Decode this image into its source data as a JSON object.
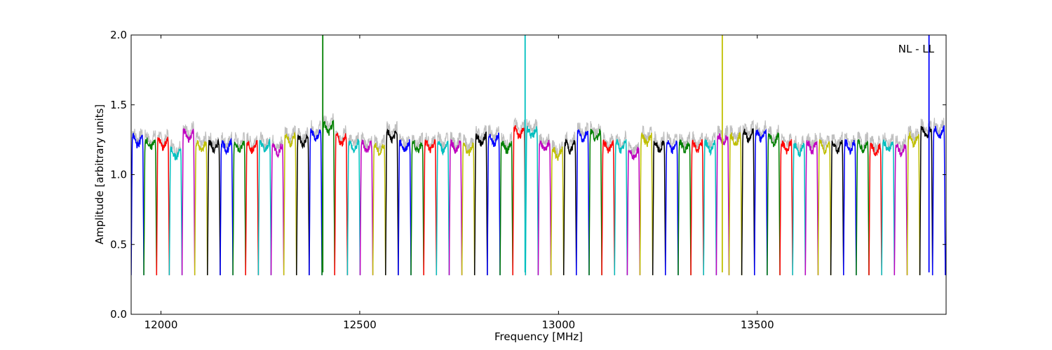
{
  "chart_data": {
    "type": "line",
    "xlabel": "Frequency [MHz]",
    "ylabel": "Amplitude [arbitrary units]",
    "annotation": "NL - LL",
    "xlim": [
      11925,
      13975
    ],
    "ylim": [
      0.0,
      2.0
    ],
    "xticks": [
      {
        "value": 12000,
        "label": "12000"
      },
      {
        "value": 12500,
        "label": "12500"
      },
      {
        "value": 13000,
        "label": "13000"
      },
      {
        "value": 13500,
        "label": "13500"
      }
    ],
    "yticks": [
      {
        "value": 0.0,
        "label": "0.0"
      },
      {
        "value": 0.5,
        "label": "0.5"
      },
      {
        "value": 1.0,
        "label": "1.0"
      },
      {
        "value": 1.5,
        "label": "1.5"
      },
      {
        "value": 2.0,
        "label": "2.0"
      }
    ],
    "grid": false,
    "band_width_mhz": 32,
    "color_cycle": [
      "#0000ff",
      "#008000",
      "#ff0000",
      "#00bfbf",
      "#bf00bf",
      "#bfbf00",
      "#000000"
    ],
    "background_color": "#bfbfbf",
    "band_start_mhz": [
      11925,
      11957,
      11989,
      12021,
      12053,
      12085,
      12117,
      12149,
      12181,
      12213,
      12245,
      12277,
      12309,
      12341,
      12373,
      12405,
      12437,
      12469,
      12501,
      12533,
      12565,
      12597,
      12629,
      12661,
      12693,
      12725,
      12757,
      12789,
      12821,
      12853,
      12885,
      12917,
      12949,
      12981,
      13013,
      13045,
      13077,
      13109,
      13141,
      13173,
      13205,
      13237,
      13269,
      13301,
      13333,
      13365,
      13397,
      13429,
      13461,
      13493,
      13525,
      13557,
      13589,
      13621,
      13653,
      13685,
      13717,
      13749,
      13781,
      13813,
      13845,
      13877,
      13909,
      13941
    ],
    "band_level": [
      1.24,
      1.22,
      1.22,
      1.15,
      1.28,
      1.2,
      1.2,
      1.2,
      1.2,
      1.2,
      1.2,
      1.18,
      1.25,
      1.24,
      1.28,
      1.33,
      1.25,
      1.2,
      1.2,
      1.18,
      1.28,
      1.2,
      1.2,
      1.2,
      1.2,
      1.2,
      1.18,
      1.25,
      1.25,
      1.2,
      1.3,
      1.3,
      1.2,
      1.15,
      1.2,
      1.28,
      1.28,
      1.2,
      1.2,
      1.15,
      1.25,
      1.2,
      1.2,
      1.2,
      1.2,
      1.2,
      1.25,
      1.25,
      1.28,
      1.28,
      1.25,
      1.2,
      1.18,
      1.2,
      1.2,
      1.2,
      1.2,
      1.2,
      1.18,
      1.2,
      1.18,
      1.25,
      1.3,
      1.3
    ],
    "spikes": [
      {
        "x": 12407,
        "ymin": 0.3,
        "ymax": 2.0,
        "color": "#008000"
      },
      {
        "x": 12916,
        "ymin": 0.3,
        "ymax": 2.0,
        "color": "#00bfbf"
      },
      {
        "x": 13412,
        "ymin": 0.3,
        "ymax": 2.0,
        "color": "#bfbf00"
      },
      {
        "x": 13932,
        "ymin": 0.3,
        "ymax": 2.0,
        "color": "#0000ff"
      }
    ]
  }
}
